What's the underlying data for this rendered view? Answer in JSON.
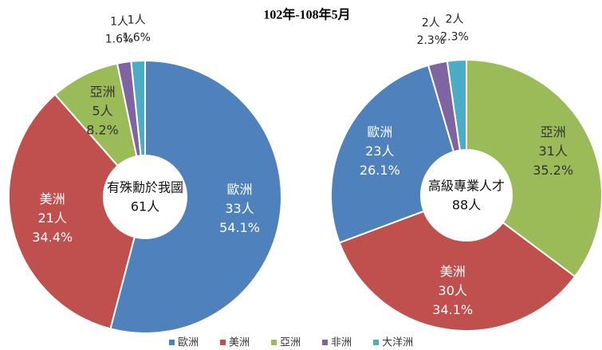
{
  "chart_data": [
    {
      "type": "donut",
      "title": "102年-108年5月",
      "categories": [
        "歐洲",
        "美洲",
        "亞洲",
        "非洲",
        "大洋洲"
      ],
      "values": [
        33,
        21,
        5,
        1,
        1
      ],
      "value_labels": [
        "33人",
        "21人",
        "5人",
        "1人",
        "1人"
      ],
      "percent_labels": [
        "54.1%",
        "34.4%",
        "8.2%",
        "1.6%",
        "1.6%"
      ],
      "colors": [
        "#4f81bd",
        "#c0504d",
        "#9bbb59",
        "#8064a2",
        "#4bacc6"
      ],
      "center_label": "有殊勳於我國",
      "center_value": "61人"
    },
    {
      "type": "donut",
      "categories": [
        "亞洲",
        "美洲",
        "歐洲",
        "非洲",
        "大洋洲"
      ],
      "values": [
        31,
        30,
        23,
        2,
        2
      ],
      "value_labels": [
        "31人",
        "30人",
        "23人",
        "2人",
        "2人"
      ],
      "percent_labels": [
        "35.2%",
        "34.1%",
        "26.1%",
        "2.3%",
        "2.3%"
      ],
      "colors": [
        "#9bbb59",
        "#c0504d",
        "#4f81bd",
        "#8064a2",
        "#4bacc6"
      ],
      "center_label": "高級專業人才",
      "center_value": "88人"
    }
  ]
}
